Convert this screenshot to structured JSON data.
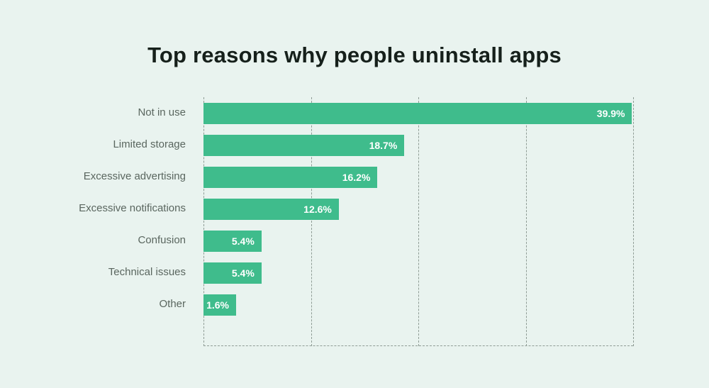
{
  "title": "Top reasons why people uninstall apps",
  "colors": {
    "background": "#e9f3ef",
    "bar": "#3fbc8c",
    "label": "#5a665f",
    "value_text": "#ffffff",
    "grid": "#8f9c95",
    "title_text": "#16201b"
  },
  "chart_data": {
    "type": "bar",
    "orientation": "horizontal",
    "title": "Top reasons why people uninstall apps",
    "categories": [
      "Not in use",
      "Limited storage",
      "Excessive advertising",
      "Excessive notifications",
      "Confusion",
      "Technical issues",
      "Other"
    ],
    "values": [
      39.9,
      18.7,
      16.2,
      12.6,
      5.4,
      5.4,
      1.6
    ],
    "value_labels": [
      "39.9%",
      "18.7%",
      "16.2%",
      "12.6%",
      "5.4%",
      "5.4%",
      "1.6%"
    ],
    "xlim": [
      0,
      40
    ],
    "xlabel": "",
    "ylabel": "",
    "grid": "dashed-vertical",
    "gridline_positions_percent": [
      0,
      25,
      50,
      75,
      100
    ],
    "legend": false,
    "value_label_position": "inside-end"
  }
}
